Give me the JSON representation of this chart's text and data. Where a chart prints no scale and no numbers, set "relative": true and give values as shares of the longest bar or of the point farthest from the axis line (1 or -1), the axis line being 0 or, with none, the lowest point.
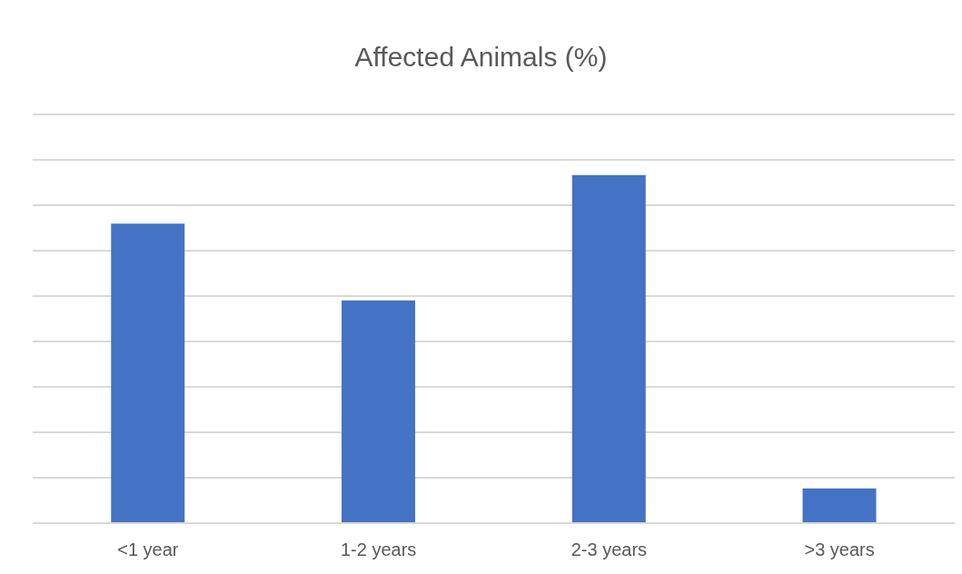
{
  "chart_data": {
    "type": "bar",
    "title": "Affected Animals (%)",
    "categories": [
      "<1 year",
      "1-2 years",
      "2-3 years",
      ">3 years"
    ],
    "values": [
      0.86,
      0.64,
      1,
      0.1
    ],
    "color": "#4472c4",
    "relative": true,
    "grid": "y"
  }
}
